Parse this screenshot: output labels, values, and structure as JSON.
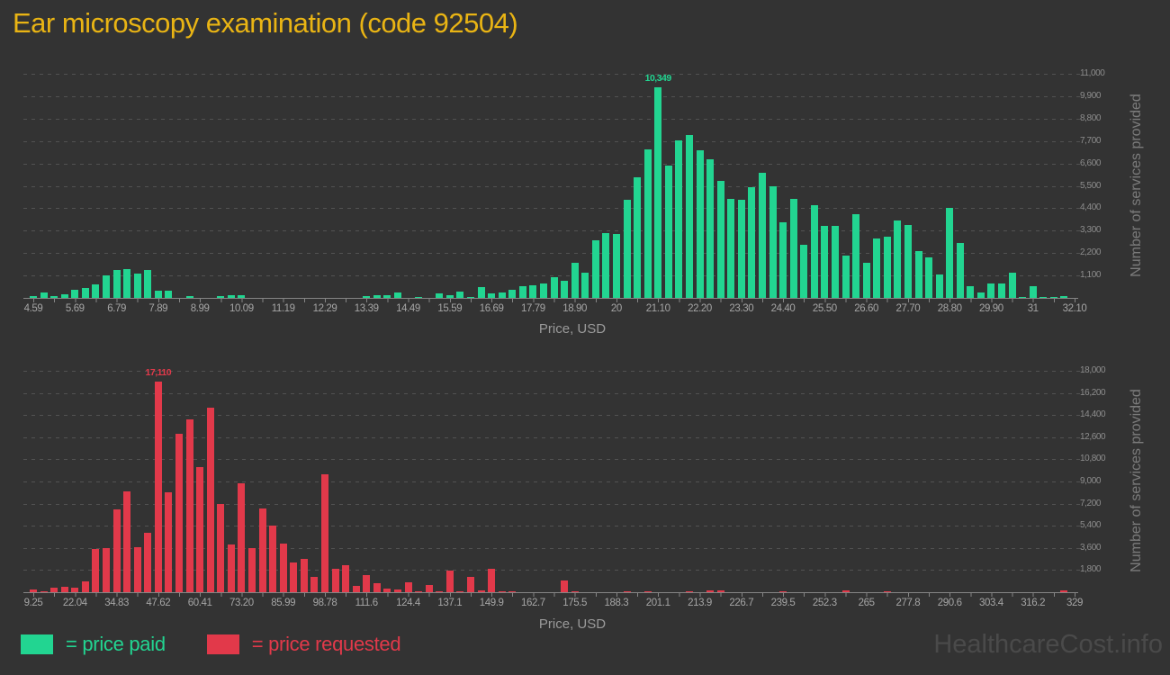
{
  "app": {
    "title": "Ear microscopy examination (code 92504)",
    "watermark": "HealthcareCost.info"
  },
  "colors": {
    "background": "#333333",
    "title": "#e9b414",
    "paid": "#22d591",
    "requested": "#e2394a",
    "watermark": "#4a4a4a"
  },
  "legend": {
    "paid": {
      "label": "= price paid",
      "color": "#22d591"
    },
    "requested": {
      "label": "= price requested",
      "color": "#e2394a"
    }
  },
  "chart_data": [
    {
      "name": "price-paid-histogram",
      "type": "bar",
      "series_name": "price paid",
      "color": "#22d591",
      "xlabel": "Price, USD",
      "ylabel": "Number of services provided",
      "x_start": 4.59,
      "x_step": 0.275,
      "xlim": [
        4.59,
        32.1
      ],
      "ylim": [
        0,
        11000
      ],
      "grid": true,
      "x_tick_labels": [
        "4.59",
        "5.69",
        "6.79",
        "7.89",
        "8.99",
        "10.09",
        "11.19",
        "12.29",
        "13.39",
        "14.49",
        "15.59",
        "16.69",
        "17.79",
        "18.90",
        "20",
        "21.10",
        "22.20",
        "23.30",
        "24.40",
        "25.50",
        "26.60",
        "27.70",
        "28.80",
        "29.90",
        "31",
        "32.10"
      ],
      "y_tick_labels": [
        "1,100",
        "2,200",
        "3,300",
        "4,400",
        "5,500",
        "6,600",
        "7,700",
        "8,800",
        "9,900",
        "11,000"
      ],
      "y_tick_values": [
        1100,
        2200,
        3300,
        4400,
        5500,
        6600,
        7700,
        8800,
        9900,
        11000
      ],
      "peak": {
        "label": "10,349",
        "value": 10349,
        "index": 60
      },
      "values": [
        90,
        250,
        70,
        170,
        400,
        500,
        650,
        1090,
        1380,
        1420,
        1190,
        1380,
        360,
        360,
        0,
        70,
        0,
        0,
        70,
        120,
        120,
        0,
        0,
        0,
        0,
        0,
        0,
        0,
        0,
        0,
        0,
        0,
        100,
        120,
        150,
        260,
        0,
        60,
        0,
        220,
        120,
        290,
        60,
        540,
        220,
        260,
        380,
        590,
        620,
        730,
        1000,
        850,
        1730,
        1250,
        2840,
        3200,
        3140,
        4800,
        5940,
        7300,
        10349,
        6480,
        7720,
        8000,
        7250,
        6810,
        5730,
        4870,
        4810,
        5450,
        6140,
        5500,
        3720,
        4870,
        2610,
        4560,
        3520,
        3520,
        2070,
        4130,
        1730,
        2930,
        3000,
        3810,
        3560,
        2320,
        1980,
        1140,
        4430,
        2710,
        560,
        260,
        700,
        690,
        1250,
        30,
        590,
        15,
        30,
        70
      ]
    },
    {
      "name": "price-requested-histogram",
      "type": "bar",
      "series_name": "price requested",
      "color": "#e2394a",
      "xlabel": "Price, USD",
      "ylabel": "Number of services provided",
      "x_start": 9.25,
      "x_step": 3.1975,
      "xlim": [
        9.25,
        329
      ],
      "ylim": [
        0,
        18000
      ],
      "grid": true,
      "x_tick_labels": [
        "9.25",
        "22.04",
        "34.83",
        "47.62",
        "60.41",
        "73.20",
        "85.99",
        "98.78",
        "111.6",
        "124.4",
        "137.1",
        "149.9",
        "162.7",
        "175.5",
        "188.3",
        "201.1",
        "213.9",
        "226.7",
        "239.5",
        "252.3",
        "265",
        "277.8",
        "290.6",
        "303.4",
        "316.2",
        "329"
      ],
      "y_tick_labels": [
        "1,800",
        "3,600",
        "5,400",
        "7,200",
        "9,000",
        "10,800",
        "12,600",
        "14,400",
        "16,200",
        "18,000"
      ],
      "y_tick_values": [
        1800,
        3600,
        5400,
        7200,
        9000,
        10800,
        12600,
        14400,
        16200,
        18000
      ],
      "peak": {
        "label": "17,110",
        "value": 17110,
        "index": 12
      },
      "values": [
        200,
        50,
        390,
        460,
        340,
        880,
        3490,
        3610,
        6730,
        8190,
        3630,
        4830,
        17110,
        8150,
        12880,
        14070,
        10150,
        15030,
        7150,
        3880,
        8850,
        3560,
        6800,
        5390,
        3980,
        2410,
        2710,
        1240,
        9580,
        1930,
        2220,
        550,
        1390,
        700,
        310,
        220,
        790,
        70,
        620,
        80,
        1750,
        30,
        1220,
        140,
        1900,
        20,
        60,
        0,
        0,
        0,
        0,
        980,
        90,
        0,
        0,
        0,
        0,
        60,
        0,
        90,
        0,
        0,
        0,
        60,
        0,
        140,
        150,
        0,
        0,
        0,
        0,
        0,
        100,
        0,
        0,
        0,
        0,
        0,
        150,
        0,
        0,
        0,
        100,
        0,
        0,
        0,
        0,
        0,
        0,
        0,
        0,
        0,
        0,
        0,
        0,
        0,
        0,
        0,
        0,
        120
      ]
    }
  ]
}
